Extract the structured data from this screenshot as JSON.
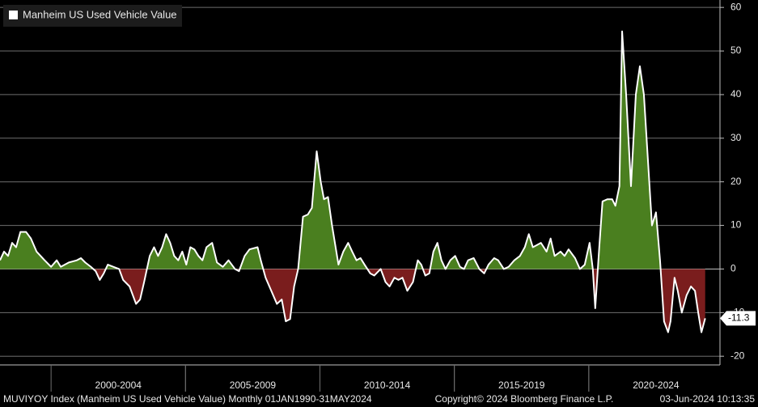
{
  "chart_data": {
    "type": "area",
    "legend": "top-left",
    "grid": true,
    "positive_fill": "#4a7f1f",
    "negative_fill": "#7a1d1d",
    "background": "#000000",
    "footer": [
      "MUVIYOY Index (Manheim US Used Vehicle Value)  Monthly 01JAN1990-31MAY2024",
      "Copyright© 2024 Bloomberg Finance L.P.",
      "03-Jun-2024 10:13:35"
    ],
    "xlim": [
      1998.1,
      2024.88
    ],
    "xticks": [
      {
        "value": 2002.5,
        "label": "2000-2004"
      },
      {
        "value": 2007.5,
        "label": "2005-2009"
      },
      {
        "value": 2012.5,
        "label": "2010-2014"
      },
      {
        "value": 2017.5,
        "label": "2015-2019"
      },
      {
        "value": 2022.5,
        "label": "2020-2024"
      }
    ],
    "ylim": [
      -22,
      61.7
    ],
    "yticks": [
      -20,
      -10,
      0,
      10,
      20,
      30,
      40,
      50,
      60
    ],
    "x": [
      1998.1,
      1998.25,
      1998.4,
      1998.55,
      1998.7,
      1998.86,
      1999.07,
      1999.25,
      1999.46,
      1999.76,
      2000.0,
      2000.21,
      2000.36,
      2000.66,
      2000.96,
      2001.11,
      2001.27,
      2001.48,
      2001.66,
      2001.81,
      2001.96,
      2002.11,
      2002.32,
      2002.53,
      2002.68,
      2002.92,
      2003.16,
      2003.31,
      2003.46,
      2003.67,
      2003.83,
      2003.98,
      2004.13,
      2004.28,
      2004.43,
      2004.58,
      2004.73,
      2004.88,
      2005.03,
      2005.18,
      2005.33,
      2005.48,
      2005.63,
      2005.78,
      2005.99,
      2006.17,
      2006.39,
      2006.6,
      2006.84,
      2006.99,
      2007.2,
      2007.38,
      2007.68,
      2007.8,
      2007.98,
      2008.19,
      2008.4,
      2008.58,
      2008.73,
      2008.89,
      2009.04,
      2009.19,
      2009.37,
      2009.55,
      2009.7,
      2009.88,
      2010.03,
      2010.15,
      2010.3,
      2010.45,
      2010.69,
      2010.87,
      2011.05,
      2011.2,
      2011.36,
      2011.51,
      2011.66,
      2011.87,
      2012.02,
      2012.26,
      2012.44,
      2012.59,
      2012.77,
      2012.92,
      2013.07,
      2013.25,
      2013.46,
      2013.64,
      2013.77,
      2013.92,
      2014.07,
      2014.22,
      2014.37,
      2014.52,
      2014.67,
      2014.85,
      2015.03,
      2015.21,
      2015.36,
      2015.51,
      2015.72,
      2015.93,
      2016.11,
      2016.27,
      2016.48,
      2016.63,
      2016.84,
      2017.02,
      2017.23,
      2017.44,
      2017.62,
      2017.77,
      2017.92,
      2018.07,
      2018.22,
      2018.43,
      2018.58,
      2018.73,
      2018.95,
      2019.1,
      2019.25,
      2019.49,
      2019.67,
      2019.85,
      2020.03,
      2020.15,
      2020.24,
      2020.39,
      2020.51,
      2020.69,
      2020.87,
      2020.99,
      2021.14,
      2021.24,
      2021.39,
      2021.57,
      2021.75,
      2021.9,
      2022.05,
      2022.2,
      2022.35,
      2022.5,
      2022.65,
      2022.8,
      2022.95,
      2023.04,
      2023.19,
      2023.31,
      2023.46,
      2023.64,
      2023.8,
      2023.95,
      2024.07,
      2024.19,
      2024.33
    ],
    "series": [
      {
        "name": "Manheim US Used Vehicle Value",
        "color": "#ffffff",
        "values": [
          2,
          4,
          3,
          6,
          5,
          8.5,
          8.5,
          7,
          4,
          2,
          0.5,
          2,
          0.5,
          1.5,
          2,
          2.5,
          1.5,
          0.5,
          -0.5,
          -2.5,
          -1,
          1,
          0.5,
          0,
          -2.5,
          -4,
          -8,
          -7,
          -3,
          3,
          5,
          3,
          5,
          8,
          6,
          3,
          2,
          4,
          1,
          5,
          4.5,
          3,
          2,
          5,
          6,
          1.5,
          0.5,
          2,
          0,
          -0.5,
          3,
          4.5,
          5,
          2,
          -2,
          -5,
          -8,
          -7,
          -12,
          -11.5,
          -4,
          0,
          12,
          12.5,
          14,
          27,
          20,
          16,
          16.5,
          10,
          1,
          4,
          6,
          4,
          2,
          2.5,
          1,
          -1,
          -1.5,
          0,
          -3,
          -4,
          -2,
          -2.5,
          -2,
          -5,
          -3,
          2,
          1,
          -1.5,
          -1,
          4,
          6,
          2,
          0,
          2,
          3,
          0.5,
          0,
          2,
          2.5,
          0,
          -1,
          1,
          2.5,
          2,
          0,
          0.5,
          2,
          3,
          5,
          8,
          5,
          5.5,
          6,
          4,
          7,
          3,
          4,
          3,
          4.5,
          2.5,
          0,
          1,
          6,
          0,
          -9,
          5,
          15.5,
          16,
          16,
          14.5,
          19,
          54.5,
          40,
          19,
          40,
          46.5,
          40,
          25,
          10,
          13,
          2,
          -12,
          -14.5,
          -12,
          -2,
          -5,
          -10,
          -6,
          -4,
          -5,
          -10,
          -14.5,
          -11.3
        ]
      }
    ]
  }
}
